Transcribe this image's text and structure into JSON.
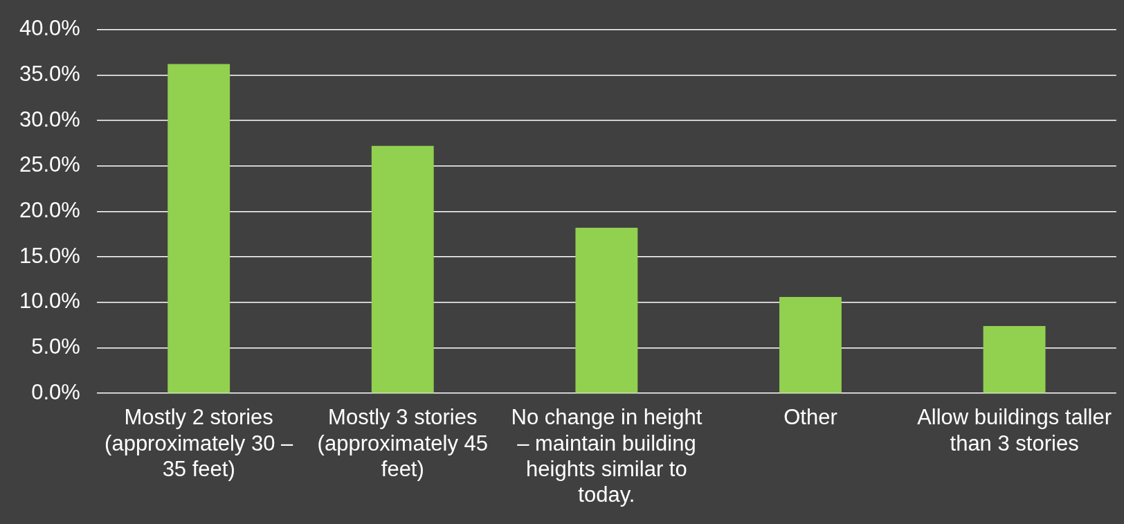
{
  "chart_data": {
    "type": "bar",
    "categories": [
      "Mostly 2 stories (approximately 30 – 35 feet)",
      "Mostly 3 stories (approximately 45 feet)",
      "No change in height – maintain building heights similar to today.",
      "Other",
      "Allow buildings taller than 3 stories"
    ],
    "values": [
      36.2,
      27.2,
      18.2,
      10.6,
      7.4
    ],
    "color": "#92d050",
    "ylim": [
      0,
      40
    ],
    "yticks": [
      {
        "value": 0,
        "label": "0.0%"
      },
      {
        "value": 5,
        "label": "5.0%"
      },
      {
        "value": 10,
        "label": "10.0%"
      },
      {
        "value": 15,
        "label": "15.0%"
      },
      {
        "value": 20,
        "label": "20.0%"
      },
      {
        "value": 25,
        "label": "25.0%"
      },
      {
        "value": 30,
        "label": "30.0%"
      },
      {
        "value": 35,
        "label": "35.0%"
      },
      {
        "value": 40,
        "label": "40.0%"
      }
    ],
    "grid": "y",
    "legend": false
  }
}
